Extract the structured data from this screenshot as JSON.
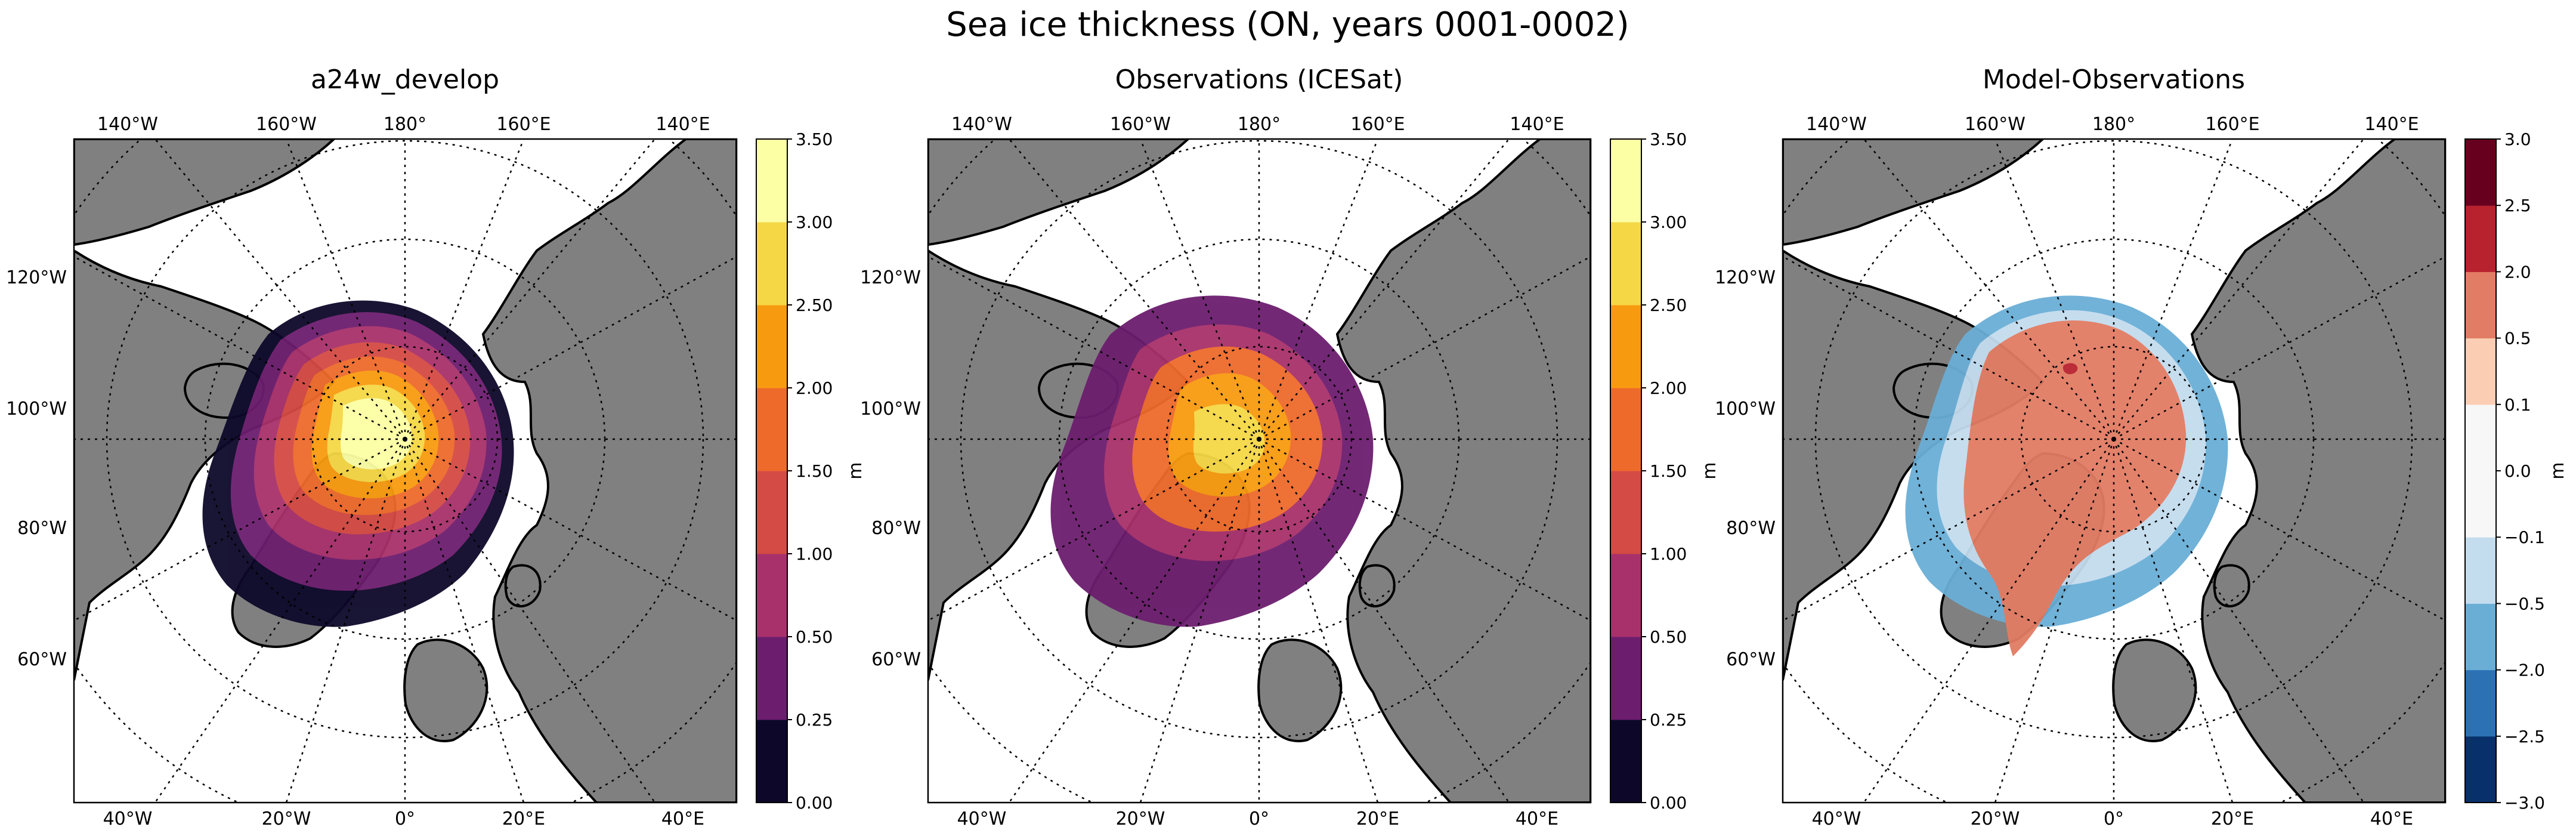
{
  "chart_data": {
    "type": "map",
    "title": "Sea ice thickness (ON, years 0001-0002)",
    "lon_labels_top": [
      "140°W",
      "160°W",
      "180°",
      "160°E",
      "140°E"
    ],
    "lon_labels_bottom": [
      "40°W",
      "20°W",
      "0°",
      "20°E",
      "40°E"
    ],
    "lat_labels": [
      "120°W",
      "100°W",
      "80°W",
      "60°W"
    ],
    "land_color": "#808080",
    "ocean_color": "#ffffff",
    "panels": [
      {
        "title": "a24w_develop",
        "colorbar": {
          "label": "m",
          "ticks": [
            "0.00",
            "0.25",
            "0.50",
            "1.00",
            "1.50",
            "2.00",
            "2.50",
            "3.00",
            "3.50"
          ],
          "colors": [
            "#0d0829",
            "#6c1d6e",
            "#a8316b",
            "#d44a44",
            "#ee6a2b",
            "#f89a10",
            "#f5d746",
            "#fcffa4"
          ]
        }
      },
      {
        "title": "Observations (ICESat)",
        "colorbar": {
          "label": "m",
          "ticks": [
            "0.00",
            "0.25",
            "0.50",
            "1.00",
            "1.50",
            "2.00",
            "2.50",
            "3.00",
            "3.50"
          ],
          "colors": [
            "#0d0829",
            "#6c1d6e",
            "#a8316b",
            "#d44a44",
            "#ee6a2b",
            "#f89a10",
            "#f5d746",
            "#fcffa4"
          ]
        }
      },
      {
        "title": "Model-Observations",
        "colorbar": {
          "label": "m",
          "ticks": [
            "−3.0",
            "−2.5",
            "−2.0",
            "−0.5",
            "−0.1",
            "0.0",
            "0.1",
            "0.5",
            "2.0",
            "2.5",
            "3.0"
          ],
          "colors": [
            "#08306b",
            "#2c71b4",
            "#6aaed6",
            "#c3dcee",
            "#f7f7f7",
            "#f7f7f7",
            "#fbcdb3",
            "#e27c64",
            "#b8222f",
            "#67001f"
          ]
        }
      }
    ]
  }
}
